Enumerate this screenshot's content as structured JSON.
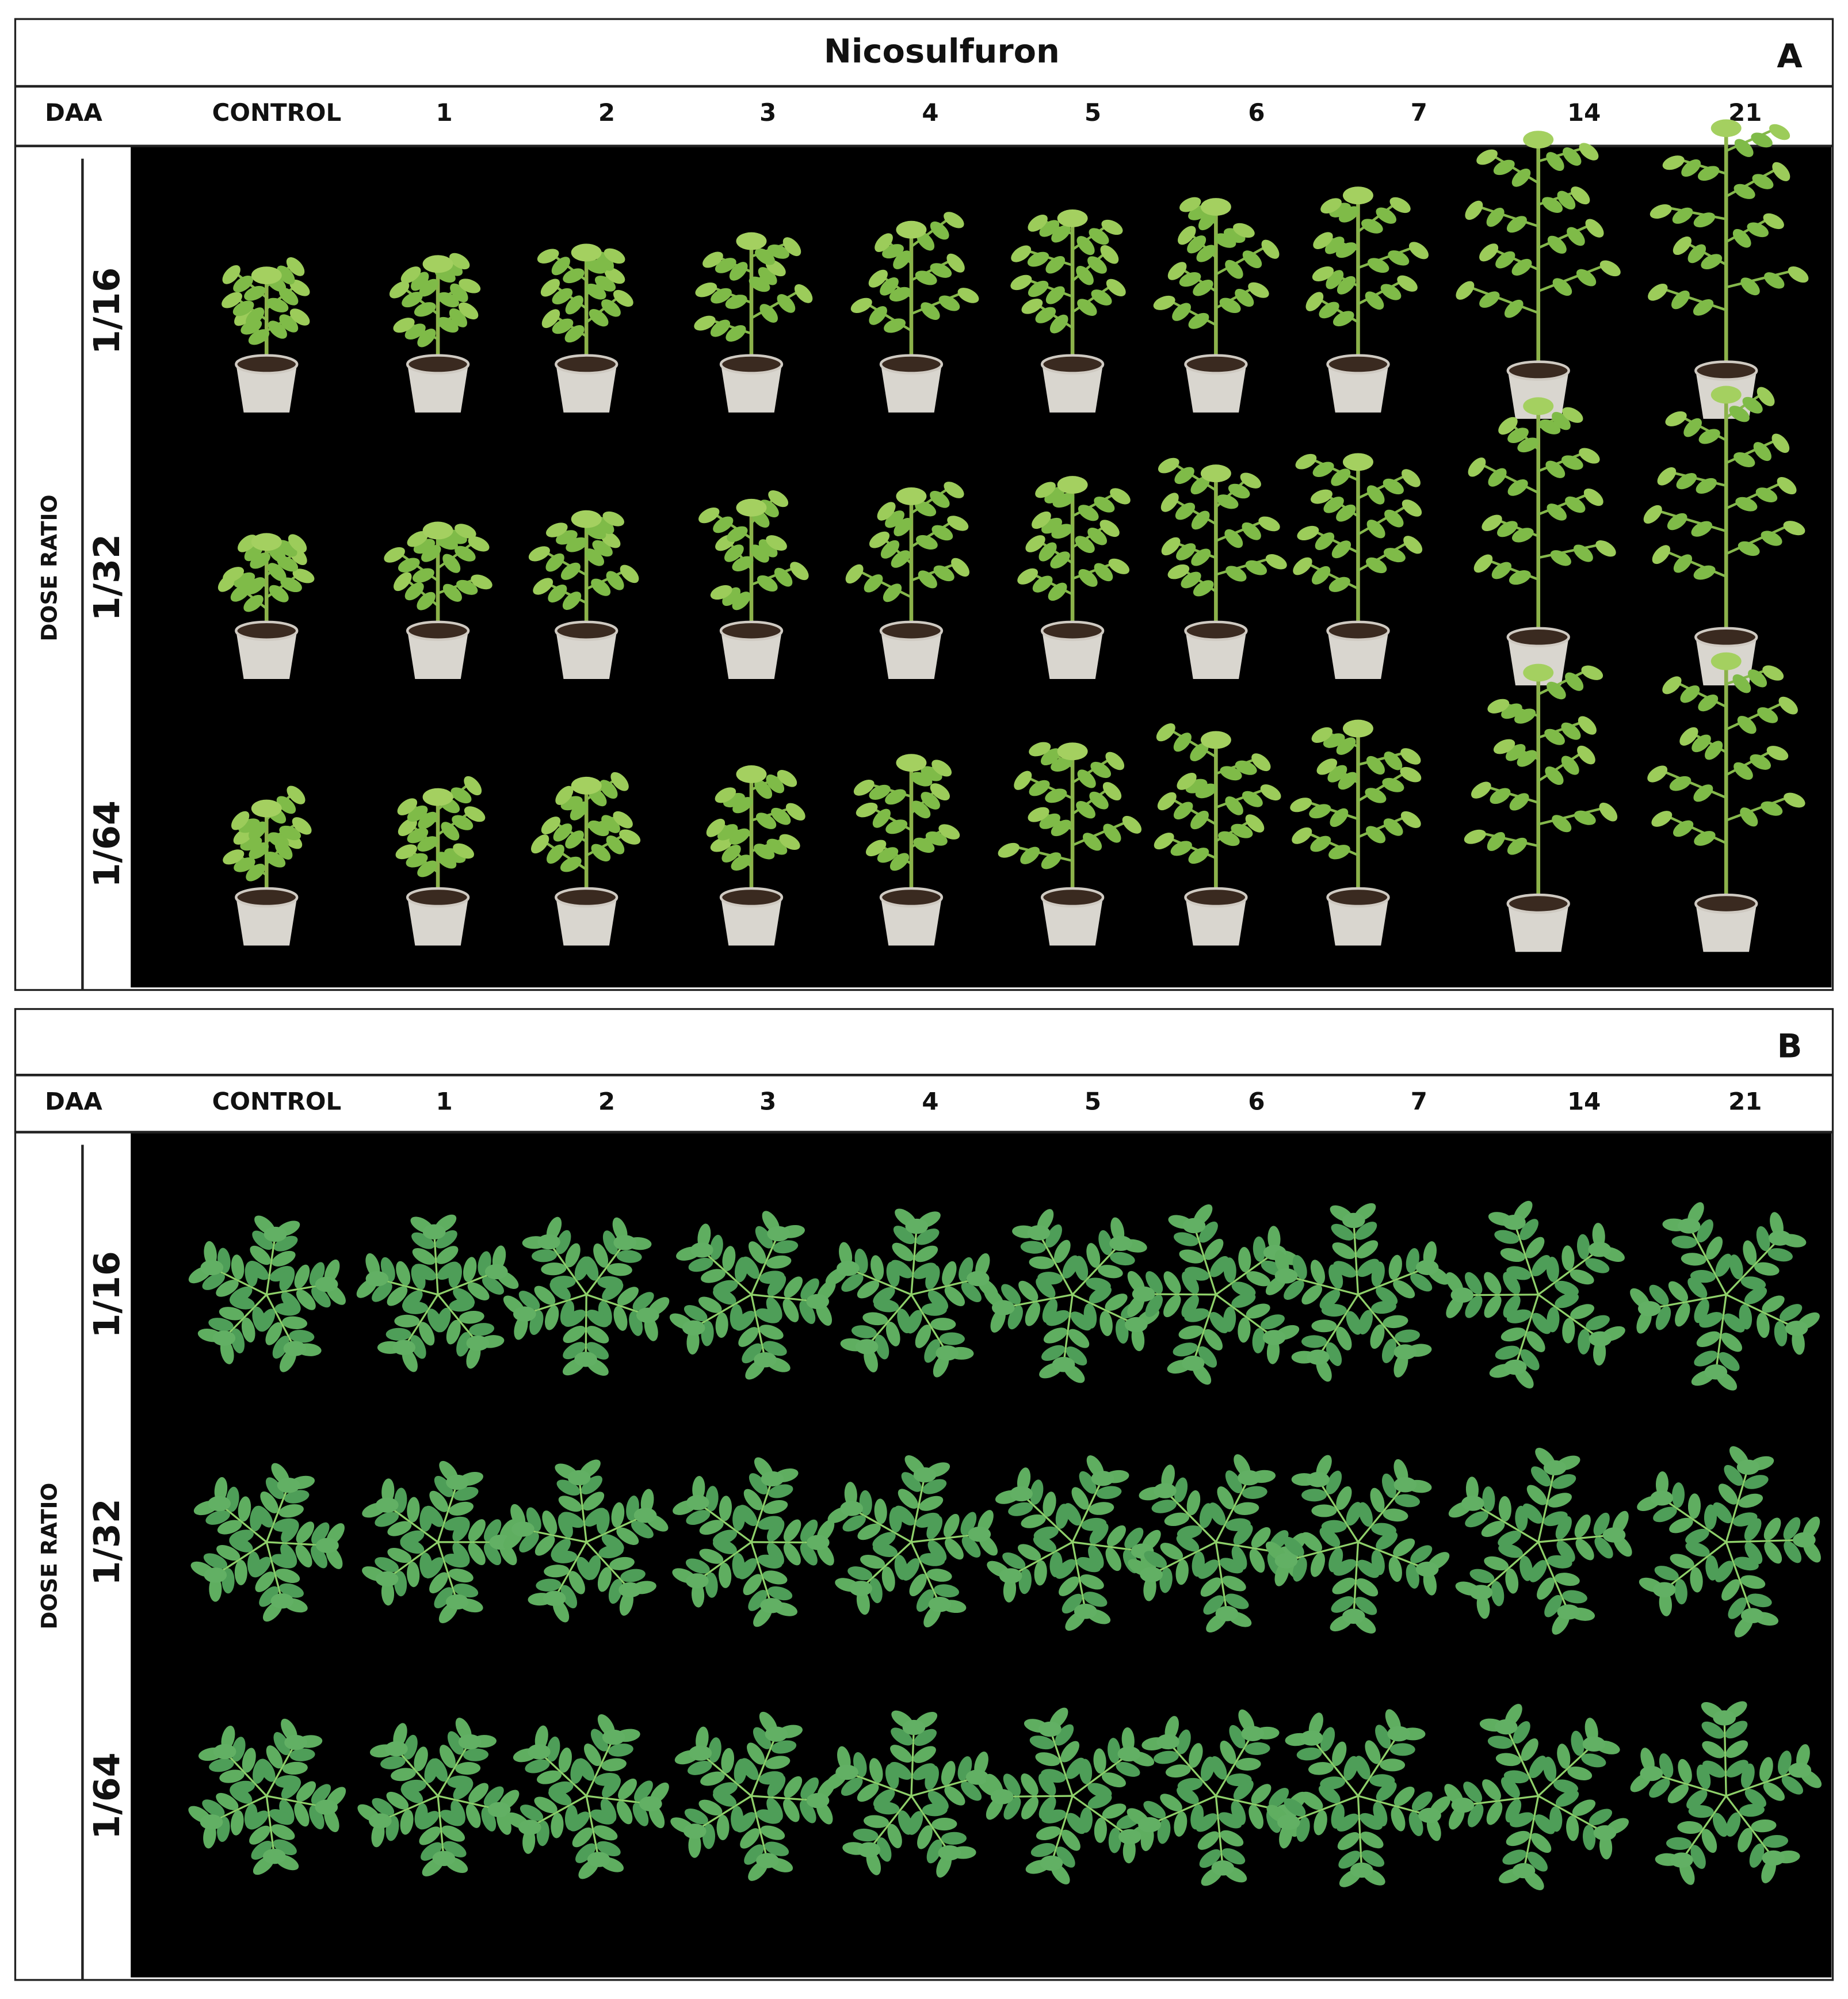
{
  "panels": [
    {
      "title": "Nicosulfuron",
      "letter": "A",
      "header": [
        "DAA",
        "CONTROL",
        "1",
        "2",
        "3",
        "4",
        "5",
        "6",
        "7",
        "14",
        "21"
      ],
      "axis_label": "DOSE RATIO",
      "rows": [
        "1/16",
        "1/32",
        "1/64"
      ]
    },
    {
      "letter": "B",
      "header": [
        "DAA",
        "CONTROL",
        "1",
        "2",
        "3",
        "4",
        "5",
        "6",
        "7",
        "14",
        "21"
      ],
      "axis_label": "DOSE RATIO",
      "rows": [
        "1/16",
        "1/32",
        "1/64"
      ]
    }
  ]
}
